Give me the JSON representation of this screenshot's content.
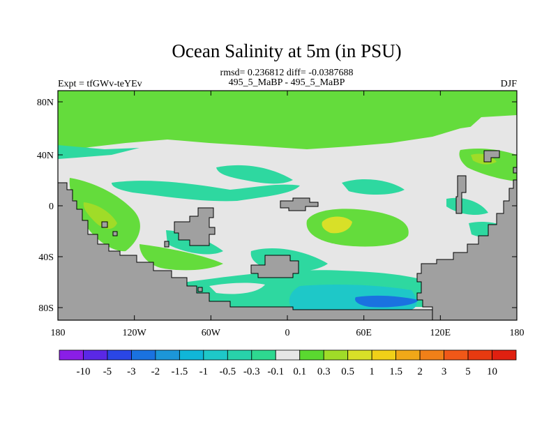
{
  "title": "Ocean Salinity at 5m (in PSU)",
  "stats": "rmsd= 0.236812 diff= -0.0387688",
  "left_label": "Expt = tfGWv-teYEv",
  "center_label": "495_5_MaBP - 495_5_MaBP",
  "right_label": "DJF",
  "lat_ticks": [
    "80N",
    "40N",
    "0",
    "40S",
    "80S"
  ],
  "lon_ticks": [
    "180",
    "120W",
    "60W",
    "0",
    "60E",
    "120E",
    "180"
  ],
  "colorbar": {
    "labels": [
      "-10",
      "-5",
      "-3",
      "-2",
      "-1.5",
      "-1",
      "-0.5",
      "-0.3",
      "-0.1",
      "0.1",
      "0.3",
      "0.5",
      "1",
      "1.5",
      "2",
      "3",
      "5",
      "10"
    ],
    "colors": [
      "#8a1ee6",
      "#5a28e6",
      "#2a46e6",
      "#1a72e0",
      "#1c96d8",
      "#10b6d8",
      "#1ec8c8",
      "#28d2aa",
      "#2ed890",
      "#e6e6e6",
      "#5ad830",
      "#a0dc28",
      "#d8e028",
      "#f0d018",
      "#f0a818",
      "#f08018",
      "#f05818",
      "#e83a10",
      "#e02010"
    ]
  },
  "colors": {
    "land": "#a0a0a0",
    "near_zero": "#e6e6e6",
    "positive_small": "#64dc3c",
    "positive_mid": "#a0dc28",
    "positive_high": "#d8e028",
    "negative_small": "#2ed8a0",
    "negative_mid": "#1ec8c8",
    "negative_high": "#1a72e0"
  }
}
